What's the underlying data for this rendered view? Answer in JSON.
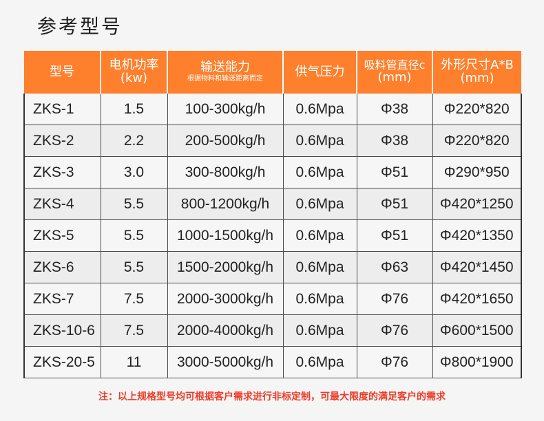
{
  "page": {
    "title": "参考型号",
    "footnote": "注：以上规格型号均可根据客户需求进行非标定制，可最大限度的满足客户的需求"
  },
  "table": {
    "headers": [
      {
        "main": "型号",
        "sub": "",
        "note": ""
      },
      {
        "main": "电机功率",
        "sub": "(kw)",
        "note": ""
      },
      {
        "main": "输送能力",
        "sub": "",
        "note": "根据物料和输送距离而定"
      },
      {
        "main": "供气压力",
        "sub": "",
        "note": ""
      },
      {
        "main": "吸料管直径c",
        "sub": "(mm)",
        "note": ""
      },
      {
        "main": "外形尺寸A*B",
        "sub": "(mm)",
        "note": ""
      }
    ],
    "rows": [
      [
        "ZKS-1",
        "1.5",
        "100-300kg/h",
        "0.6Mpa",
        "Φ38",
        "Φ220*820"
      ],
      [
        "ZKS-2",
        "2.2",
        "200-500kg/h",
        "0.6Mpa",
        "Φ38",
        "Φ220*820"
      ],
      [
        "ZKS-3",
        "3.0",
        "300-800kg/h",
        "0.6Mpa",
        "Φ51",
        "Φ290*950"
      ],
      [
        "ZKS-4",
        "5.5",
        "800-1200kg/h",
        "0.6Mpa",
        "Φ51",
        "Φ420*1250"
      ],
      [
        "ZKS-5",
        "5.5",
        "1000-1500kg/h",
        "0.6Mpa",
        "Φ51",
        "Φ420*1350"
      ],
      [
        "ZKS-6",
        "5.5",
        "1500-2000kg/h",
        "0.6Mpa",
        "Φ63",
        "Φ420*1450"
      ],
      [
        "ZKS-7",
        "7.5",
        "2000-3000kg/h",
        "0.6Mpa",
        "Φ76",
        "Φ420*1650"
      ],
      [
        "ZKS-10-6",
        "7.5",
        "2000-4000kg/h",
        "0.6Mpa",
        "Φ76",
        "Φ600*1500"
      ],
      [
        "ZKS-20-5",
        "11",
        "3000-5000kg/h",
        "0.6Mpa",
        "Φ76",
        "Φ800*1900"
      ]
    ]
  },
  "colors": {
    "header_bg": "#fe7f2c",
    "header_text": "#ffffff",
    "footnote_text": "#ee3b27"
  }
}
